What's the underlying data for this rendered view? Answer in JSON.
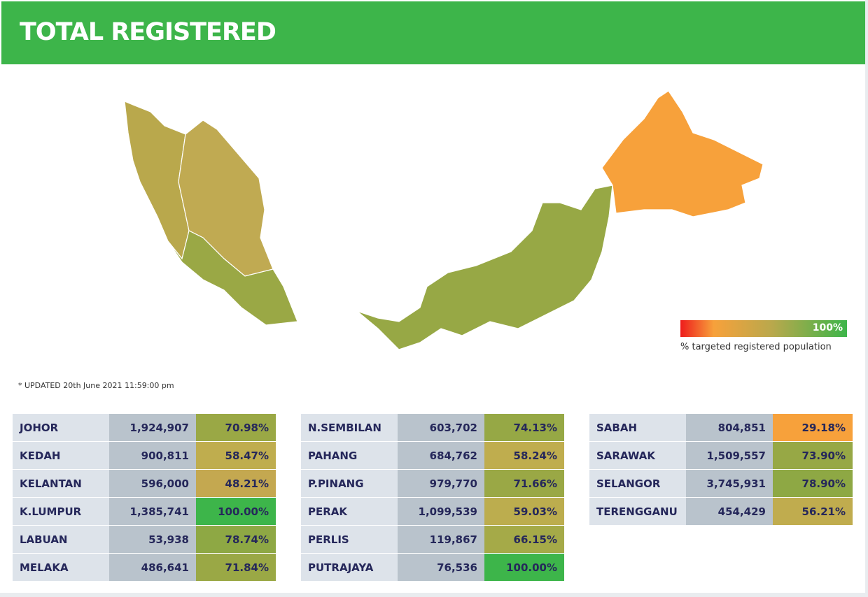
{
  "header": {
    "title": "TOTAL REGISTERED"
  },
  "legend": {
    "max_label": "100%",
    "caption": "% targeted registered population"
  },
  "updated": "* UPDATED 20th June 2021 11:59:00 pm",
  "tables": [
    {
      "rows": [
        {
          "state": "JOHOR",
          "registered": "1,924,907",
          "percent": "70.98%",
          "color": "#9aa845"
        },
        {
          "state": "KEDAH",
          "registered": "900,811",
          "percent": "58.47%",
          "color": "#bfad4e"
        },
        {
          "state": "KELANTAN",
          "registered": "596,000",
          "percent": "48.21%",
          "color": "#c4a850"
        },
        {
          "state": "K.LUMPUR",
          "registered": "1,385,741",
          "percent": "100.00%",
          "color": "#3db54a"
        },
        {
          "state": "LABUAN",
          "registered": "53,938",
          "percent": "78.74%",
          "color": "#8ea844"
        },
        {
          "state": "MELAKA",
          "registered": "486,641",
          "percent": "71.84%",
          "color": "#9aa845"
        }
      ]
    },
    {
      "rows": [
        {
          "state": "N.SEMBILAN",
          "registered": "603,702",
          "percent": "74.13%",
          "color": "#96a845"
        },
        {
          "state": "PAHANG",
          "registered": "684,762",
          "percent": "58.24%",
          "color": "#bfad4e"
        },
        {
          "state": "P.PINANG",
          "registered": "979,770",
          "percent": "71.66%",
          "color": "#9aa845"
        },
        {
          "state": "PERAK",
          "registered": "1,099,539",
          "percent": "59.03%",
          "color": "#bcad4e"
        },
        {
          "state": "PERLIS",
          "registered": "119,867",
          "percent": "66.15%",
          "color": "#a5aa48"
        },
        {
          "state": "PUTRAJAYA",
          "registered": "76,536",
          "percent": "100.00%",
          "color": "#3db54a"
        }
      ]
    },
    {
      "rows": [
        {
          "state": "SABAH",
          "registered": "804,851",
          "percent": "29.18%",
          "color": "#f7a13b"
        },
        {
          "state": "SARAWAK",
          "registered": "1,509,557",
          "percent": "73.90%",
          "color": "#97a845"
        },
        {
          "state": "SELANGOR",
          "registered": "3,745,931",
          "percent": "78.90%",
          "color": "#8ea844"
        },
        {
          "state": "TERENGGANU",
          "registered": "454,429",
          "percent": "56.21%",
          "color": "#c0ac4e"
        }
      ]
    }
  ]
}
